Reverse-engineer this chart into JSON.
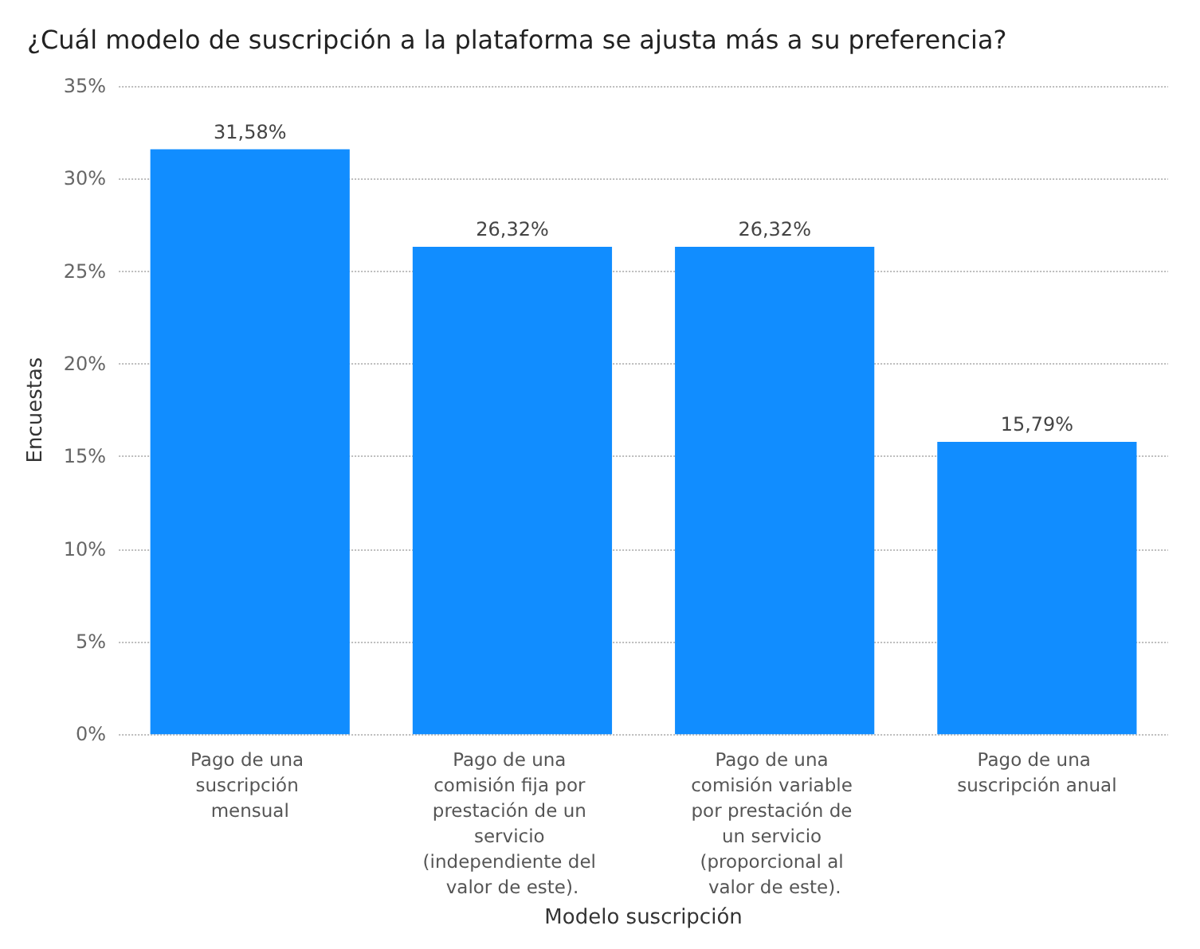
{
  "chart_data": {
    "type": "bar",
    "title": "¿Cuál modelo de suscripción a la plataforma se ajusta más a su preferencia?",
    "xlabel": "Modelo suscripción",
    "ylabel": "Encuestas",
    "categories": [
      "Pago de una suscripción mensual",
      "Pago de una comisión fija por prestación de un servicio (independiente del valor de este).",
      "Pago de una comisión variable por prestación de un servicio (proporcional al valor de este).",
      "Pago de una suscripción anual"
    ],
    "values": [
      31.58,
      26.32,
      26.32,
      15.79
    ],
    "value_labels": [
      "31,58%",
      "26,32%",
      "26,32%",
      "15,79%"
    ],
    "color": "#118dff",
    "ylim": [
      0,
      35
    ],
    "yticks": [
      {
        "value": 0,
        "label": "0%"
      },
      {
        "value": 5,
        "label": "5%"
      },
      {
        "value": 10,
        "label": "10%"
      },
      {
        "value": 15,
        "label": "15%"
      },
      {
        "value": 20,
        "label": "20%"
      },
      {
        "value": 25,
        "label": "25%"
      },
      {
        "value": 30,
        "label": "30%"
      },
      {
        "value": 35,
        "label": "35%"
      }
    ],
    "grid": "y"
  }
}
